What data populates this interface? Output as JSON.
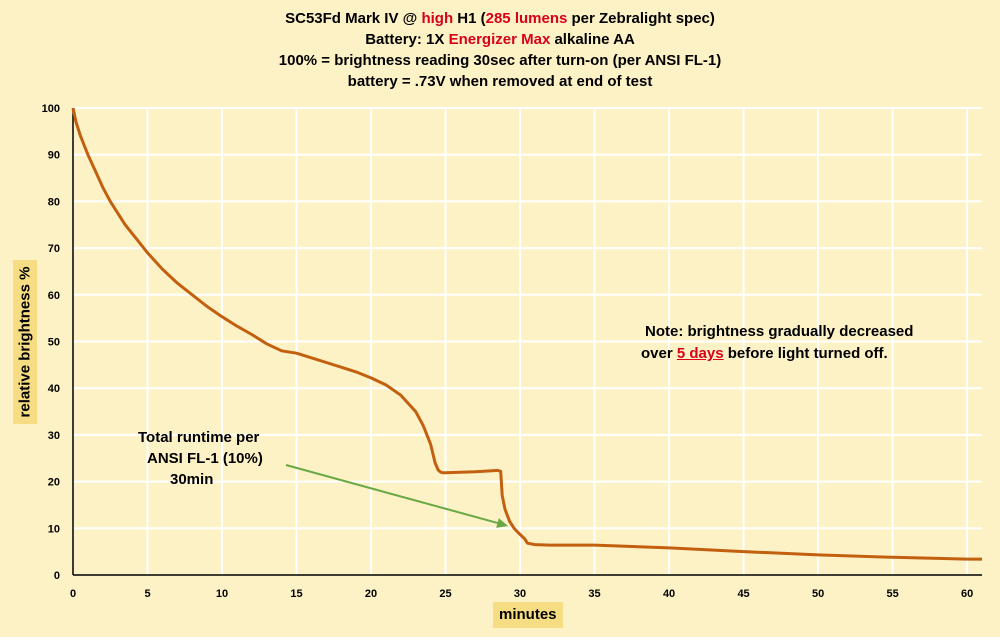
{
  "title": {
    "line1_a": "SC53Fd Mark IV @ ",
    "line1_high": "high",
    "line1_b": " H1 (",
    "line1_lumens": "285 lumens",
    "line1_c": " per Zebralight spec)",
    "line2_a": "Battery:  1X ",
    "line2_brand": "Energizer Max",
    "line2_b": " alkaline AA",
    "line3": "100% = brightness reading 30sec after turn-on (per ANSI FL-1)",
    "line4": "battery = .73V when removed at end of test"
  },
  "annotation_runtime": {
    "line1": "Total runtime per",
    "line2": "ANSI FL-1 (10%)",
    "line3": "30min"
  },
  "annotation_note": {
    "line1": "Note: brightness gradually decreased",
    "line2_a": "over ",
    "line2_days": "5 days",
    "line2_b": " before light turned off."
  },
  "colors": {
    "series": "#c2600f",
    "arrow": "#6aa843",
    "background": "#fdf2c6",
    "label_box": "#f6dc83",
    "emphasis": "#d8001b"
  },
  "chart_data": {
    "type": "line",
    "xlabel": "minutes",
    "ylabel": "relative  brightness  %",
    "xlim": [
      0,
      61
    ],
    "ylim": [
      0,
      100
    ],
    "xticks": [
      0,
      5,
      10,
      15,
      20,
      25,
      30,
      35,
      40,
      45,
      50,
      55,
      60
    ],
    "yticks": [
      0,
      10,
      20,
      30,
      40,
      50,
      60,
      70,
      80,
      90,
      100
    ],
    "grid": true,
    "series": [
      {
        "x": [
          0,
          0.2,
          0.5,
          1,
          1.5,
          2,
          2.5,
          3,
          3.5,
          4,
          4.5,
          5,
          6,
          7,
          8,
          9,
          10,
          11,
          12,
          13,
          14,
          15,
          16,
          17,
          18,
          19,
          20,
          21,
          22,
          23,
          23.5,
          24,
          24.3,
          24.5,
          24.6,
          24.65,
          24.7,
          24.8,
          25,
          26,
          27,
          28,
          28.5,
          28.7,
          28.8,
          29,
          29.3,
          29.6,
          30,
          30.3,
          30.5,
          31,
          32,
          35,
          40,
          45,
          50,
          55,
          60,
          61
        ],
        "y": [
          100,
          97,
          94,
          90,
          86.5,
          83,
          80,
          77.5,
          75,
          73,
          71,
          69,
          65.5,
          62.5,
          60,
          57.5,
          55.3,
          53.3,
          51.5,
          49.5,
          48,
          47.5,
          46.5,
          45.5,
          44.5,
          43.5,
          42.2,
          40.7,
          38.5,
          35,
          32,
          28,
          24,
          22.5,
          22.2,
          22.1,
          22,
          21.9,
          21.9,
          22,
          22.1,
          22.3,
          22.4,
          22.2,
          17,
          14,
          11.5,
          10,
          8.7,
          7.8,
          6.8,
          6.5,
          6.4,
          6.4,
          5.8,
          5,
          4.3,
          3.8,
          3.4,
          3.4
        ]
      }
    ]
  }
}
